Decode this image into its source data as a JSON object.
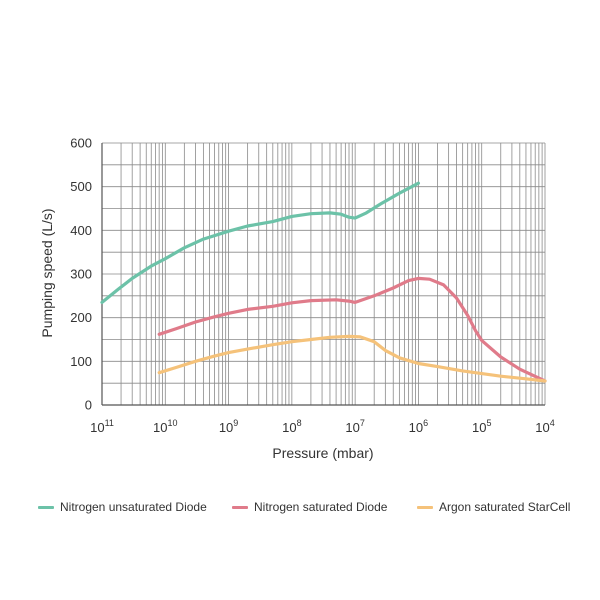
{
  "chart_data": {
    "type": "line",
    "title": "",
    "xlabel": "Pressure (mbar)",
    "ylabel": "Pumping speed (L/s)",
    "x_scale": "log",
    "x_direction": "decreasing-pressure-left-to-right",
    "xlim": [
      1e-11,
      0.0001
    ],
    "ylim": [
      0,
      600
    ],
    "grid": true,
    "y_ticks": [
      "0",
      "100",
      "200",
      "300",
      "400",
      "500",
      "600"
    ],
    "x_ticks": [
      {
        "base": "10",
        "exp": "11"
      },
      {
        "base": "10",
        "exp": "10"
      },
      {
        "base": "10",
        "exp": "9"
      },
      {
        "base": "10",
        "exp": "8"
      },
      {
        "base": "10",
        "exp": "7"
      },
      {
        "base": "10",
        "exp": "6"
      },
      {
        "base": "10",
        "exp": "5"
      },
      {
        "base": "10",
        "exp": "4"
      }
    ],
    "legend_position": "bottom",
    "series": [
      {
        "name": "Nitrogen unsaturated Diode",
        "color": "#6cc2a8",
        "points": [
          [
            1e-11,
            235
          ],
          [
            1.8e-11,
            265
          ],
          [
            3e-11,
            290
          ],
          [
            6e-11,
            318
          ],
          [
            1e-10,
            335
          ],
          [
            2e-10,
            360
          ],
          [
            4e-10,
            380
          ],
          [
            1e-09,
            398
          ],
          [
            2e-09,
            410
          ],
          [
            5e-09,
            420
          ],
          [
            1e-08,
            432
          ],
          [
            2e-08,
            438
          ],
          [
            4e-08,
            440
          ],
          [
            6e-08,
            437
          ],
          [
            8e-08,
            430
          ],
          [
            1e-07,
            428
          ],
          [
            1.5e-07,
            440
          ],
          [
            2.5e-07,
            460
          ],
          [
            5e-07,
            485
          ],
          [
            1e-06,
            508
          ]
        ]
      },
      {
        "name": "Nitrogen saturated Diode",
        "color": "#e07b8a",
        "points": [
          [
            8e-11,
            162
          ],
          [
            1.5e-10,
            175
          ],
          [
            3e-10,
            190
          ],
          [
            6e-10,
            202
          ],
          [
            1e-09,
            210
          ],
          [
            2e-09,
            219
          ],
          [
            5e-09,
            226
          ],
          [
            1e-08,
            234
          ],
          [
            2e-08,
            239
          ],
          [
            5e-08,
            241
          ],
          [
            8e-08,
            238
          ],
          [
            1e-07,
            235
          ],
          [
            2e-07,
            250
          ],
          [
            4e-07,
            268
          ],
          [
            7e-07,
            285
          ],
          [
            1e-06,
            290
          ],
          [
            1.5e-06,
            288
          ],
          [
            2.5e-06,
            275
          ],
          [
            4e-06,
            245
          ],
          [
            6e-06,
            205
          ],
          [
            8e-06,
            170
          ],
          [
            1e-05,
            148
          ],
          [
            2e-05,
            110
          ],
          [
            4e-05,
            82
          ],
          [
            0.0001,
            55
          ]
        ]
      },
      {
        "name": "Argon saturated StarCell",
        "color": "#f5c27a",
        "points": [
          [
            8e-11,
            74
          ],
          [
            1.5e-10,
            86
          ],
          [
            3e-10,
            100
          ],
          [
            6e-10,
            112
          ],
          [
            1e-09,
            120
          ],
          [
            2e-09,
            128
          ],
          [
            5e-09,
            138
          ],
          [
            1e-08,
            145
          ],
          [
            2e-08,
            150
          ],
          [
            4e-08,
            155
          ],
          [
            8e-08,
            157
          ],
          [
            1.2e-07,
            156
          ],
          [
            2e-07,
            145
          ],
          [
            3e-07,
            125
          ],
          [
            5e-07,
            108
          ],
          [
            1e-06,
            95
          ],
          [
            2e-06,
            88
          ],
          [
            5e-06,
            78
          ],
          [
            1e-05,
            72
          ],
          [
            2e-05,
            66
          ],
          [
            5e-05,
            60
          ],
          [
            0.0001,
            55
          ]
        ]
      }
    ]
  }
}
